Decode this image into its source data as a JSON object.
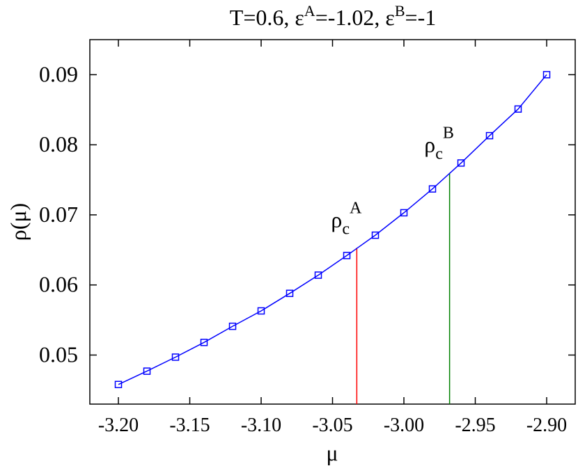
{
  "chart_data": {
    "type": "line",
    "title": {
      "parts": [
        "T=0.6, ε",
        "A",
        "=-1.02, ε",
        "B",
        "=-1"
      ]
    },
    "xlabel": "μ",
    "ylabel": "ρ(μ)",
    "xlim": [
      -3.22,
      -2.88
    ],
    "ylim": [
      0.043,
      0.095
    ],
    "x_ticks": [
      -3.2,
      -3.15,
      -3.1,
      -3.05,
      -3.0,
      -2.95,
      -2.9
    ],
    "x_tick_labels": [
      "-3.20",
      "-3.15",
      "-3.10",
      "-3.05",
      "-3.00",
      "-2.95",
      "-2.90"
    ],
    "y_ticks": [
      0.05,
      0.06,
      0.07,
      0.08,
      0.09
    ],
    "y_tick_labels": [
      "0.05",
      "0.06",
      "0.07",
      "0.08",
      "0.09"
    ],
    "grid": false,
    "series": [
      {
        "color": "#0000ff",
        "marker": "open-square",
        "x": [
          -3.2,
          -3.18,
          -3.16,
          -3.14,
          -3.12,
          -3.1,
          -3.08,
          -3.06,
          -3.04,
          -3.02,
          -3.0,
          -2.98,
          -2.96,
          -2.94,
          -2.92,
          -2.9
        ],
        "y": [
          0.0458,
          0.0477,
          0.0497,
          0.0518,
          0.0541,
          0.0563,
          0.0588,
          0.0614,
          0.0642,
          0.0671,
          0.0703,
          0.0737,
          0.0774,
          0.0813,
          0.0851,
          0.09
        ]
      }
    ],
    "vlines": [
      {
        "x": -3.033,
        "y_top": 0.0653,
        "color": "#ff0000",
        "label": {
          "base": "ρ",
          "sub": "c",
          "sup": "A"
        }
      },
      {
        "x": -2.968,
        "y_top": 0.076,
        "color": "#008000",
        "label": {
          "base": "ρ",
          "sub": "c",
          "sup": "B"
        }
      }
    ]
  }
}
